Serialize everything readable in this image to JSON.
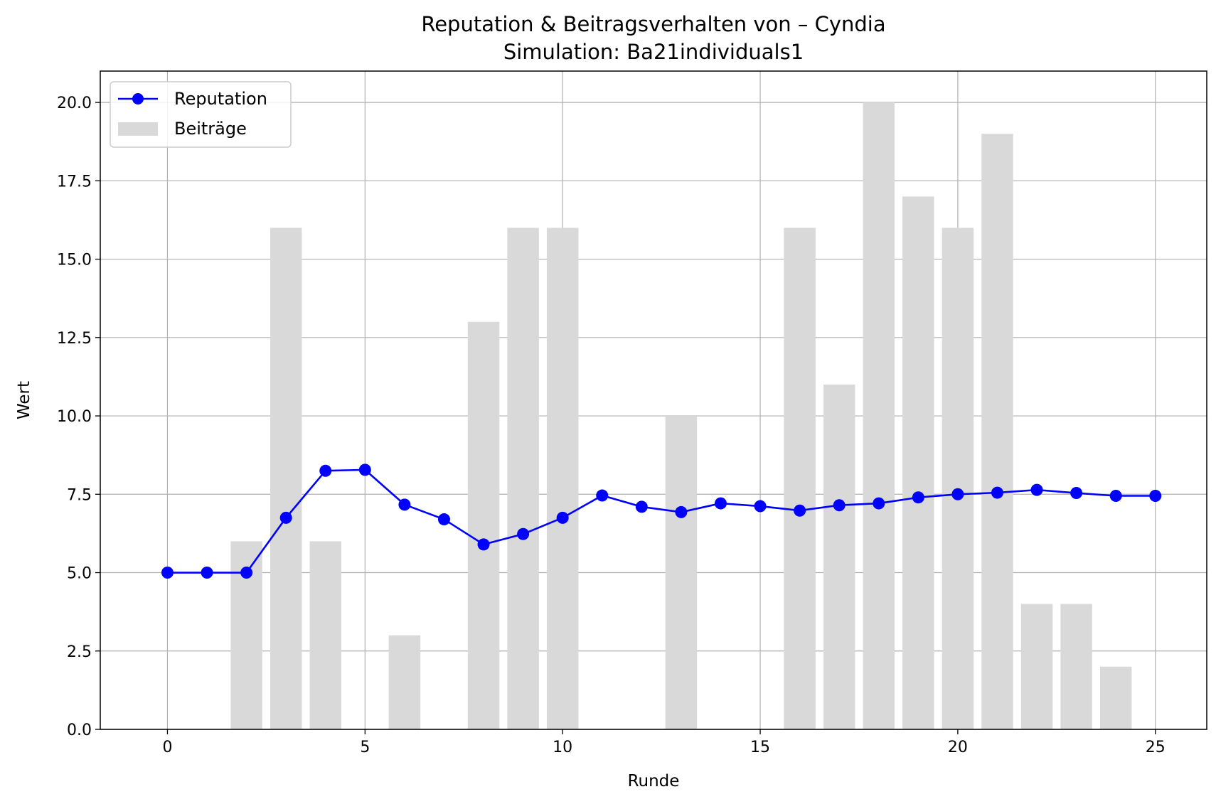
{
  "chart_data": {
    "type": "bar+line",
    "title": "Reputation & Beitragsverhalten von – Cyndia",
    "subtitle": "Simulation: Ba21individuals1",
    "xlabel": "Runde",
    "ylabel": "Wert",
    "xlim": [
      -1.7,
      26.3
    ],
    "ylim": [
      0,
      21
    ],
    "xticks": [
      0,
      5,
      10,
      15,
      20,
      25
    ],
    "yticks": [
      0.0,
      2.5,
      5.0,
      7.5,
      10.0,
      12.5,
      15.0,
      17.5,
      20.0
    ],
    "grid": true,
    "legend": {
      "placement": "top-left",
      "entries": [
        "Reputation",
        "Beiträge"
      ]
    },
    "x": [
      0,
      1,
      2,
      3,
      4,
      5,
      6,
      7,
      8,
      9,
      10,
      11,
      12,
      13,
      14,
      15,
      16,
      17,
      18,
      19,
      20,
      21,
      22,
      23,
      24,
      25
    ],
    "series": [
      {
        "name": "Beiträge",
        "kind": "bar",
        "color": "#d9d9d9",
        "values": [
          0,
          0,
          6,
          16,
          6,
          0,
          3,
          0,
          13,
          16,
          16,
          0,
          0,
          10,
          0,
          0,
          16,
          11,
          20,
          17,
          16,
          19,
          4,
          4,
          2,
          0
        ]
      },
      {
        "name": "Reputation",
        "kind": "line",
        "color": "#0000ff",
        "values": [
          5.0,
          5.0,
          5.0,
          6.75,
          8.25,
          8.28,
          7.17,
          6.7,
          5.9,
          6.23,
          6.75,
          7.46,
          7.1,
          6.93,
          7.21,
          7.12,
          6.98,
          7.15,
          7.21,
          7.4,
          7.5,
          7.55,
          7.64,
          7.54,
          7.45,
          7.45
        ]
      }
    ]
  }
}
